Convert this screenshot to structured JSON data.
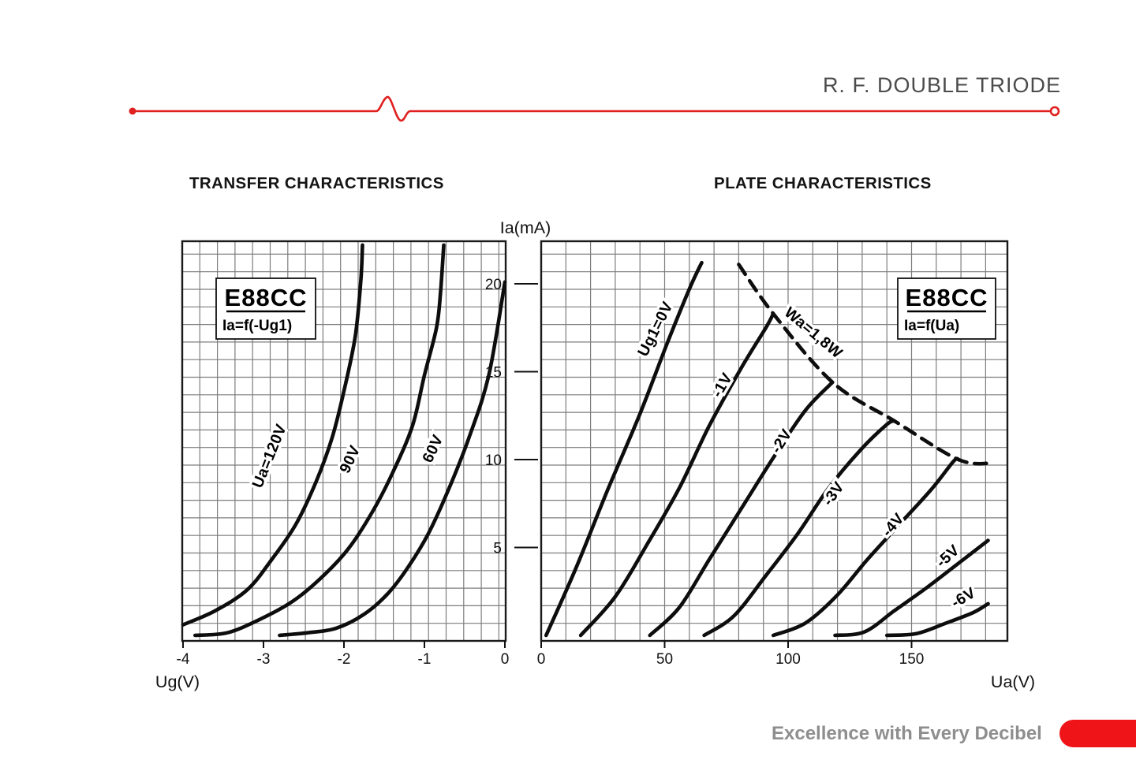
{
  "page": {
    "brand_title": "R. F. DOUBLE TRIODE",
    "tagline": "Excellence with Every Decibel",
    "colors": {
      "red_line": "#e02020",
      "red_pill": "#ee1418",
      "title_gray": "#4c4c4c",
      "tagline_gray": "#8e8e8e",
      "ink": "#141414",
      "grid_gray": "#7d7d7d"
    }
  },
  "sections": {
    "left_heading": "TRANSFER CHARACTERISTICS",
    "right_heading": "PLATE CHARACTERISTICS"
  },
  "chart_data": [
    {
      "type": "line",
      "title": "TRANSFER CHARACTERISTICS",
      "inset_label": {
        "line1": "E88CC",
        "line2": "Ia=f(-Ug1)"
      },
      "xlabel": "Ug(V)",
      "ylabel": "Ia(mA)",
      "xlim": [
        -4,
        0
      ],
      "ylim": [
        0,
        22
      ],
      "xticks": [
        -4,
        -3,
        -2,
        -1,
        0
      ],
      "yticks": [
        5,
        10,
        15,
        20
      ],
      "grid": true,
      "legend_position": "on-curve",
      "series": [
        {
          "name": "Ua=120V",
          "dashed": false,
          "label_at": [
            -2.87,
            10.1
          ],
          "label_rot": -68,
          "points": [
            [
              -4,
              0.6
            ],
            [
              -3.6,
              1.4
            ],
            [
              -3.2,
              2.6
            ],
            [
              -2.9,
              4.3
            ],
            [
              -2.6,
              6.3
            ],
            [
              -2.35,
              8.7
            ],
            [
              -2.15,
              11.2
            ],
            [
              -2,
              13.9
            ],
            [
              -1.86,
              17
            ],
            [
              -1.79,
              20.2
            ],
            [
              -1.77,
              22.2
            ]
          ]
        },
        {
          "name": "90V",
          "dashed": false,
          "label_at": [
            -1.87,
            9.9
          ],
          "label_rot": -65,
          "points": [
            [
              -3.85,
              0
            ],
            [
              -3.45,
              0.15
            ],
            [
              -3.05,
              0.9
            ],
            [
              -2.65,
              1.9
            ],
            [
              -2.3,
              3.2
            ],
            [
              -1.95,
              4.9
            ],
            [
              -1.65,
              7
            ],
            [
              -1.4,
              9.2
            ],
            [
              -1.15,
              11.9
            ],
            [
              -1,
              14.8
            ],
            [
              -0.85,
              17.5
            ],
            [
              -0.8,
              19.5
            ],
            [
              -0.76,
              22.2
            ]
          ]
        },
        {
          "name": "60V",
          "dashed": false,
          "label_at": [
            -0.84,
            10.5
          ],
          "label_rot": -65,
          "points": [
            [
              -2.8,
              0
            ],
            [
              -2.45,
              0.15
            ],
            [
              -2.1,
              0.4
            ],
            [
              -1.75,
              1.2
            ],
            [
              -1.45,
              2.4
            ],
            [
              -1.2,
              3.9
            ],
            [
              -0.95,
              5.8
            ],
            [
              -0.7,
              8.3
            ],
            [
              -0.45,
              11.2
            ],
            [
              -0.2,
              14.8
            ],
            [
              0,
              20.1
            ]
          ]
        }
      ]
    },
    {
      "type": "line",
      "title": "PLATE CHARACTERISTICS",
      "inset_label": {
        "line1": "E88CC",
        "line2": "Ia=f(Ua)"
      },
      "xlabel": "Ua(V)",
      "ylabel": "Ia(mA)",
      "xlim": [
        0,
        189
      ],
      "ylim": [
        0,
        22
      ],
      "xticks": [
        0,
        50,
        100,
        150
      ],
      "yticks": [
        5,
        10,
        15,
        20
      ],
      "grid": true,
      "legend_position": "on-curve",
      "series": [
        {
          "name": "Ug1=0V",
          "dashed": false,
          "label_at": [
            48,
            17.3
          ],
          "label_rot": -63,
          "points": [
            [
              2,
              0
            ],
            [
              14,
              3.8
            ],
            [
              27,
              8.3
            ],
            [
              40,
              12.6
            ],
            [
              51,
              16.6
            ],
            [
              60,
              19.7
            ],
            [
              65,
              21.2
            ]
          ]
        },
        {
          "name": "-1V",
          "dashed": false,
          "label_at": [
            75,
            14.1
          ],
          "label_rot": -60,
          "points": [
            [
              16,
              0
            ],
            [
              30,
              2.2
            ],
            [
              43,
              5.2
            ],
            [
              56,
              8.4
            ],
            [
              68,
              11.9
            ],
            [
              81,
              15.2
            ],
            [
              91,
              17.5
            ],
            [
              94,
              18.3
            ]
          ]
        },
        {
          "name": "-2V",
          "dashed": false,
          "label_at": [
            99,
            10.9
          ],
          "label_rot": -58,
          "points": [
            [
              44,
              0
            ],
            [
              56,
              1.6
            ],
            [
              68,
              4.3
            ],
            [
              81,
              7.2
            ],
            [
              94,
              10.1
            ],
            [
              107,
              12.8
            ],
            [
              118,
              14.4
            ]
          ]
        },
        {
          "name": "-3V",
          "dashed": false,
          "label_at": [
            120,
            7.9
          ],
          "label_rot": -55,
          "points": [
            [
              66,
              0
            ],
            [
              78,
              1.1
            ],
            [
              91,
              3.4
            ],
            [
              104,
              5.8
            ],
            [
              116,
              8.3
            ],
            [
              129,
              10.5
            ],
            [
              140,
              12
            ],
            [
              143,
              12.2
            ]
          ]
        },
        {
          "name": "-4V",
          "dashed": false,
          "label_at": [
            144,
            6.1
          ],
          "label_rot": -50,
          "points": [
            [
              94,
              0
            ],
            [
              107,
              0.7
            ],
            [
              120,
              2.3
            ],
            [
              132,
              4.3
            ],
            [
              145,
              6.3
            ],
            [
              158,
              8.3
            ],
            [
              167,
              9.9
            ],
            [
              169,
              10
            ]
          ]
        },
        {
          "name": "-5V",
          "dashed": false,
          "label_at": [
            166,
            4.3
          ],
          "label_rot": -42,
          "points": [
            [
              119,
              0
            ],
            [
              131,
              0.2
            ],
            [
              143,
              1.4
            ],
            [
              156,
              2.7
            ],
            [
              169,
              4.1
            ],
            [
              181,
              5.4
            ]
          ]
        },
        {
          "name": "-6V",
          "dashed": false,
          "label_at": [
            172,
            1.9
          ],
          "label_rot": -30,
          "points": [
            [
              140,
              0
            ],
            [
              152,
              0.1
            ],
            [
              164,
              0.7
            ],
            [
              175,
              1.3
            ],
            [
              181,
              1.8
            ]
          ]
        },
        {
          "name": "Wa=1,8W",
          "dashed": true,
          "label_at": [
            109,
            17
          ],
          "label_rot": 40,
          "points": [
            [
              80,
              21.1
            ],
            [
              94,
              18.3
            ],
            [
              118,
              14.4
            ],
            [
              143,
              12.2
            ],
            [
              169,
              10
            ],
            [
              183,
              9.8
            ]
          ]
        }
      ]
    }
  ]
}
